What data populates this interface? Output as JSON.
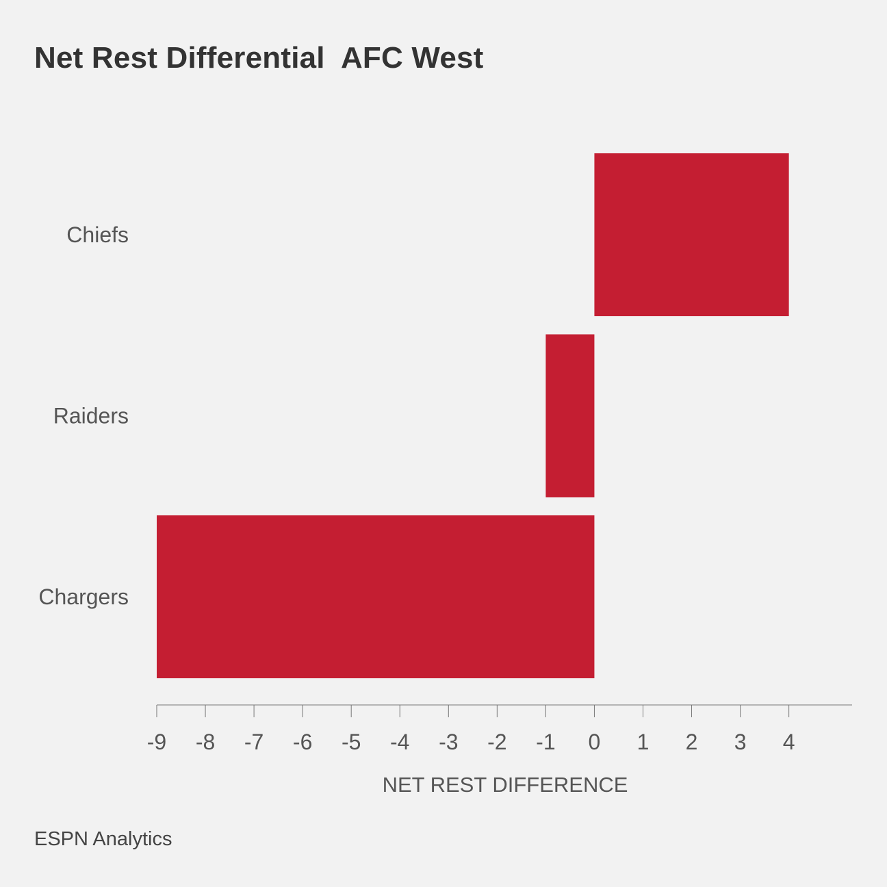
{
  "title": "Net Rest Differential  AFC West",
  "source": "ESPN Analytics",
  "colors": {
    "background": "#f2f2f2",
    "bar": "#c41e32",
    "text": "#333333",
    "axis": "#555555"
  },
  "chart_data": {
    "type": "bar",
    "orientation": "horizontal",
    "categories": [
      "Chiefs",
      "Raiders",
      "Chargers"
    ],
    "values": [
      4,
      -1,
      -9
    ],
    "xlabel": "NET REST DIFFERENCE",
    "ylabel": "",
    "xlim": [
      -9,
      5.3
    ],
    "xticks": [
      -9,
      -8,
      -7,
      -6,
      -5,
      -4,
      -3,
      -2,
      -1,
      0,
      1,
      2,
      3,
      4
    ],
    "grid": false,
    "legend": "none"
  }
}
